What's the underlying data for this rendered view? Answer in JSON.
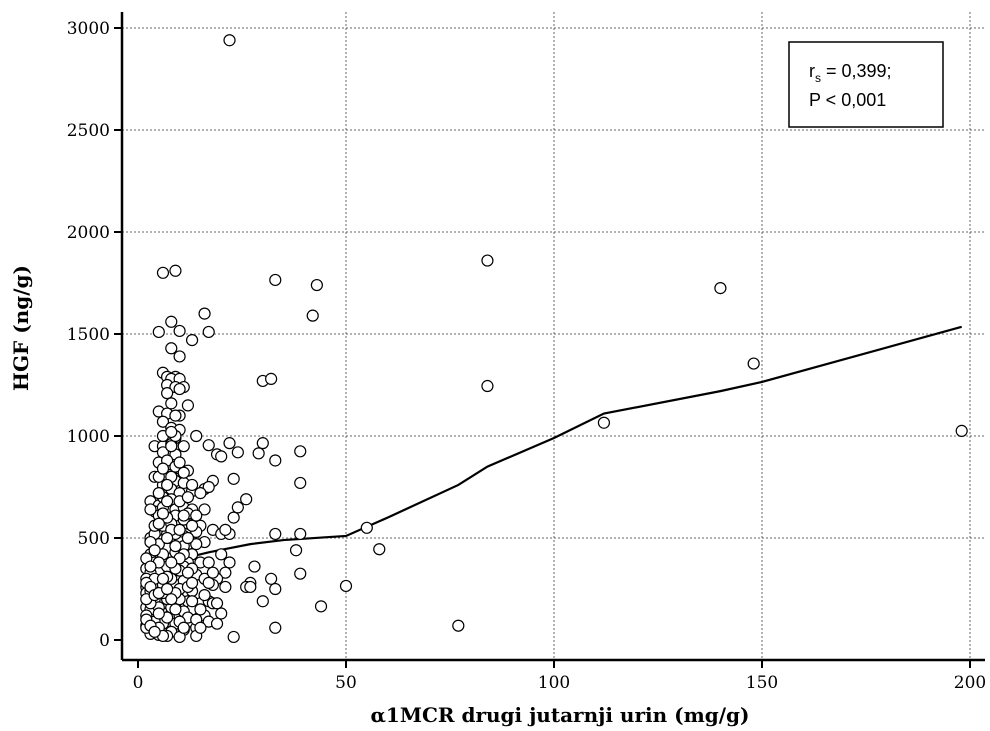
{
  "chart_data": {
    "type": "scatter",
    "xlabel": "α1MCR drugi jutarnji urin (mg/g)",
    "ylabel": "HGF (ng/g)",
    "xlim": [
      0,
      200
    ],
    "ylim": [
      0,
      3000
    ],
    "xticks": [
      "0",
      "50",
      "100",
      "150",
      "200"
    ],
    "yticks": [
      "0",
      "500",
      "1000",
      "1500",
      "2000",
      "2500",
      "3000"
    ],
    "grid": true,
    "annotation": {
      "line1_main": "r",
      "line1_sub": "s",
      "line1_rest": " = 0,399;",
      "line2": "P < 0,001"
    },
    "points": [
      [
        22,
        2940
      ],
      [
        6,
        1800
      ],
      [
        9,
        1810
      ],
      [
        33,
        1765
      ],
      [
        43,
        1740
      ],
      [
        84,
        1860
      ],
      [
        140,
        1725
      ],
      [
        16,
        1600
      ],
      [
        42,
        1590
      ],
      [
        5,
        1510
      ],
      [
        10,
        1515
      ],
      [
        17,
        1510
      ],
      [
        8,
        1560
      ],
      [
        13,
        1470
      ],
      [
        8,
        1430
      ],
      [
        10,
        1390
      ],
      [
        6,
        1310
      ],
      [
        7,
        1290
      ],
      [
        9,
        1290
      ],
      [
        8,
        1280
      ],
      [
        10,
        1280
      ],
      [
        30,
        1270
      ],
      [
        32,
        1280
      ],
      [
        84,
        1245
      ],
      [
        148,
        1355
      ],
      [
        7,
        1250
      ],
      [
        9,
        1240
      ],
      [
        11,
        1240
      ],
      [
        7,
        1210
      ],
      [
        8,
        1160
      ],
      [
        12,
        1150
      ],
      [
        5,
        1120
      ],
      [
        7,
        1110
      ],
      [
        10,
        1100
      ],
      [
        6,
        1070
      ],
      [
        8,
        1040
      ],
      [
        10,
        1030
      ],
      [
        14,
        1000
      ],
      [
        7,
        980
      ],
      [
        9,
        990
      ],
      [
        4,
        950
      ],
      [
        6,
        950
      ],
      [
        8,
        960
      ],
      [
        11,
        950
      ],
      [
        17,
        955
      ],
      [
        22,
        965
      ],
      [
        30,
        965
      ],
      [
        112,
        1065
      ],
      [
        198,
        1025
      ],
      [
        6,
        920
      ],
      [
        9,
        910
      ],
      [
        19,
        910
      ],
      [
        20,
        900
      ],
      [
        24,
        920
      ],
      [
        29,
        915
      ],
      [
        39,
        925
      ],
      [
        33,
        880
      ],
      [
        5,
        870
      ],
      [
        8,
        860
      ],
      [
        10,
        840
      ],
      [
        12,
        830
      ],
      [
        4,
        800
      ],
      [
        7,
        800
      ],
      [
        9,
        780
      ],
      [
        11,
        770
      ],
      [
        18,
        780
      ],
      [
        23,
        790
      ],
      [
        39,
        770
      ],
      [
        6,
        760
      ],
      [
        8,
        740
      ],
      [
        10,
        720
      ],
      [
        13,
        730
      ],
      [
        16,
        740
      ],
      [
        17,
        750
      ],
      [
        15,
        720
      ],
      [
        26,
        690
      ],
      [
        3,
        680
      ],
      [
        5,
        660
      ],
      [
        7,
        650
      ],
      [
        9,
        640
      ],
      [
        11,
        650
      ],
      [
        13,
        640
      ],
      [
        24,
        650
      ],
      [
        4,
        630
      ],
      [
        6,
        600
      ],
      [
        8,
        590
      ],
      [
        10,
        580
      ],
      [
        12,
        570
      ],
      [
        15,
        560
      ],
      [
        23,
        600
      ],
      [
        5,
        540
      ],
      [
        7,
        520
      ],
      [
        9,
        530
      ],
      [
        11,
        510
      ],
      [
        14,
        530
      ],
      [
        18,
        540
      ],
      [
        20,
        520
      ],
      [
        22,
        520
      ],
      [
        33,
        520
      ],
      [
        39,
        520
      ],
      [
        55,
        550
      ],
      [
        3,
        500
      ],
      [
        6,
        490
      ],
      [
        8,
        480
      ],
      [
        12,
        470
      ],
      [
        16,
        480
      ],
      [
        4,
        450
      ],
      [
        6,
        430
      ],
      [
        8,
        420
      ],
      [
        10,
        410
      ],
      [
        13,
        420
      ],
      [
        38,
        440
      ],
      [
        58,
        445
      ],
      [
        3,
        400
      ],
      [
        5,
        390
      ],
      [
        7,
        380
      ],
      [
        9,
        370
      ],
      [
        12,
        380
      ],
      [
        15,
        380
      ],
      [
        17,
        380
      ],
      [
        22,
        380
      ],
      [
        2,
        350
      ],
      [
        4,
        340
      ],
      [
        6,
        330
      ],
      [
        8,
        320
      ],
      [
        10,
        310
      ],
      [
        14,
        320
      ],
      [
        21,
        330
      ],
      [
        28,
        360
      ],
      [
        39,
        325
      ],
      [
        3,
        300
      ],
      [
        5,
        290
      ],
      [
        7,
        280
      ],
      [
        9,
        270
      ],
      [
        11,
        290
      ],
      [
        16,
        300
      ],
      [
        19,
        300
      ],
      [
        27,
        280
      ],
      [
        32,
        300
      ],
      [
        2,
        260
      ],
      [
        4,
        250
      ],
      [
        6,
        240
      ],
      [
        8,
        230
      ],
      [
        10,
        250
      ],
      [
        13,
        240
      ],
      [
        18,
        270
      ],
      [
        21,
        260
      ],
      [
        26,
        260
      ],
      [
        27,
        260
      ],
      [
        33,
        250
      ],
      [
        50,
        265
      ],
      [
        3,
        210
      ],
      [
        5,
        200
      ],
      [
        7,
        190
      ],
      [
        9,
        180
      ],
      [
        12,
        190
      ],
      [
        15,
        180
      ],
      [
        17,
        190
      ],
      [
        18,
        180
      ],
      [
        19,
        180
      ],
      [
        30,
        190
      ],
      [
        44,
        165
      ],
      [
        2,
        160
      ],
      [
        4,
        150
      ],
      [
        6,
        140
      ],
      [
        8,
        130
      ],
      [
        10,
        120
      ],
      [
        13,
        150
      ],
      [
        16,
        120
      ],
      [
        20,
        130
      ],
      [
        3,
        110
      ],
      [
        5,
        100
      ],
      [
        7,
        90
      ],
      [
        9,
        80
      ],
      [
        12,
        90
      ],
      [
        17,
        90
      ],
      [
        19,
        80
      ],
      [
        2,
        70
      ],
      [
        4,
        60
      ],
      [
        6,
        50
      ],
      [
        8,
        40
      ],
      [
        11,
        50
      ],
      [
        14,
        60
      ],
      [
        33,
        60
      ],
      [
        77,
        70
      ],
      [
        3,
        30
      ],
      [
        5,
        25
      ],
      [
        7,
        20
      ],
      [
        10,
        15
      ],
      [
        14,
        20
      ],
      [
        23,
        15
      ],
      [
        4,
        120
      ],
      [
        6,
        180
      ],
      [
        5,
        330
      ],
      [
        7,
        450
      ],
      [
        9,
        610
      ],
      [
        6,
        700
      ],
      [
        8,
        690
      ],
      [
        10,
        480
      ],
      [
        11,
        360
      ],
      [
        12,
        260
      ],
      [
        13,
        350
      ],
      [
        6,
        560
      ],
      [
        5,
        720
      ],
      [
        4,
        280
      ],
      [
        3,
        150
      ],
      [
        2,
        60
      ],
      [
        8,
        570
      ],
      [
        9,
        430
      ],
      [
        7,
        360
      ],
      [
        5,
        470
      ],
      [
        6,
        270
      ],
      [
        4,
        200
      ],
      [
        10,
        200
      ],
      [
        11,
        140
      ],
      [
        12,
        110
      ],
      [
        3,
        420
      ],
      [
        2,
        230
      ],
      [
        5,
        610
      ],
      [
        7,
        880
      ],
      [
        9,
        1000
      ],
      [
        6,
        1000
      ],
      [
        8,
        800
      ],
      [
        4,
        520
      ],
      [
        3,
        640
      ],
      [
        10,
        680
      ],
      [
        11,
        590
      ],
      [
        12,
        620
      ],
      [
        14,
        470
      ],
      [
        16,
        640
      ],
      [
        15,
        150
      ],
      [
        13,
        280
      ],
      [
        11,
        460
      ],
      [
        9,
        520
      ],
      [
        7,
        600
      ],
      [
        5,
        800
      ],
      [
        6,
        650
      ],
      [
        4,
        380
      ],
      [
        3,
        330
      ],
      [
        2,
        300
      ],
      [
        2,
        400
      ],
      [
        2,
        120
      ],
      [
        3,
        240
      ],
      [
        5,
        160
      ],
      [
        6,
        80
      ],
      [
        7,
        110
      ],
      [
        8,
        160
      ],
      [
        9,
        230
      ],
      [
        10,
        340
      ],
      [
        11,
        420
      ],
      [
        12,
        500
      ],
      [
        13,
        560
      ],
      [
        14,
        610
      ],
      [
        8,
        950
      ],
      [
        7,
        760
      ],
      [
        6,
        840
      ],
      [
        9,
        850
      ],
      [
        10,
        870
      ],
      [
        11,
        820
      ],
      [
        4,
        560
      ],
      [
        3,
        480
      ],
      [
        4,
        90
      ],
      [
        5,
        60
      ],
      [
        6,
        20
      ],
      [
        7,
        200
      ],
      [
        8,
        300
      ],
      [
        9,
        350
      ],
      [
        10,
        400
      ],
      [
        12,
        330
      ],
      [
        13,
        190
      ],
      [
        14,
        100
      ],
      [
        15,
        60
      ],
      [
        16,
        220
      ],
      [
        17,
        280
      ],
      [
        18,
        330
      ],
      [
        20,
        420
      ],
      [
        21,
        540
      ],
      [
        8,
        540
      ],
      [
        7,
        500
      ],
      [
        6,
        420
      ],
      [
        5,
        380
      ],
      [
        4,
        300
      ],
      [
        3,
        180
      ],
      [
        2,
        200
      ],
      [
        2,
        100
      ],
      [
        3,
        70
      ],
      [
        4,
        40
      ],
      [
        5,
        130
      ],
      [
        6,
        230
      ],
      [
        7,
        310
      ],
      [
        8,
        380
      ],
      [
        9,
        460
      ],
      [
        10,
        540
      ],
      [
        11,
        610
      ],
      [
        12,
        700
      ],
      [
        13,
        760
      ],
      [
        9,
        1100
      ],
      [
        10,
        1230
      ],
      [
        8,
        1020
      ],
      [
        7,
        680
      ],
      [
        6,
        620
      ],
      [
        5,
        570
      ],
      [
        4,
        440
      ],
      [
        3,
        360
      ],
      [
        2,
        280
      ],
      [
        3,
        260
      ],
      [
        4,
        220
      ],
      [
        5,
        230
      ],
      [
        6,
        300
      ],
      [
        7,
        250
      ],
      [
        8,
        200
      ],
      [
        9,
        150
      ],
      [
        10,
        90
      ],
      [
        11,
        60
      ]
    ],
    "trend": [
      [
        1,
        60
      ],
      [
        3,
        200
      ],
      [
        5,
        290
      ],
      [
        7,
        340
      ],
      [
        10,
        380
      ],
      [
        13,
        410
      ],
      [
        17,
        430
      ],
      [
        22,
        450
      ],
      [
        27,
        470
      ],
      [
        35,
        490
      ],
      [
        50,
        510
      ],
      [
        60,
        600
      ],
      [
        77,
        760
      ],
      [
        84,
        850
      ],
      [
        100,
        990
      ],
      [
        112,
        1110
      ],
      [
        140,
        1220
      ],
      [
        150,
        1265
      ],
      [
        198,
        1535
      ]
    ]
  }
}
